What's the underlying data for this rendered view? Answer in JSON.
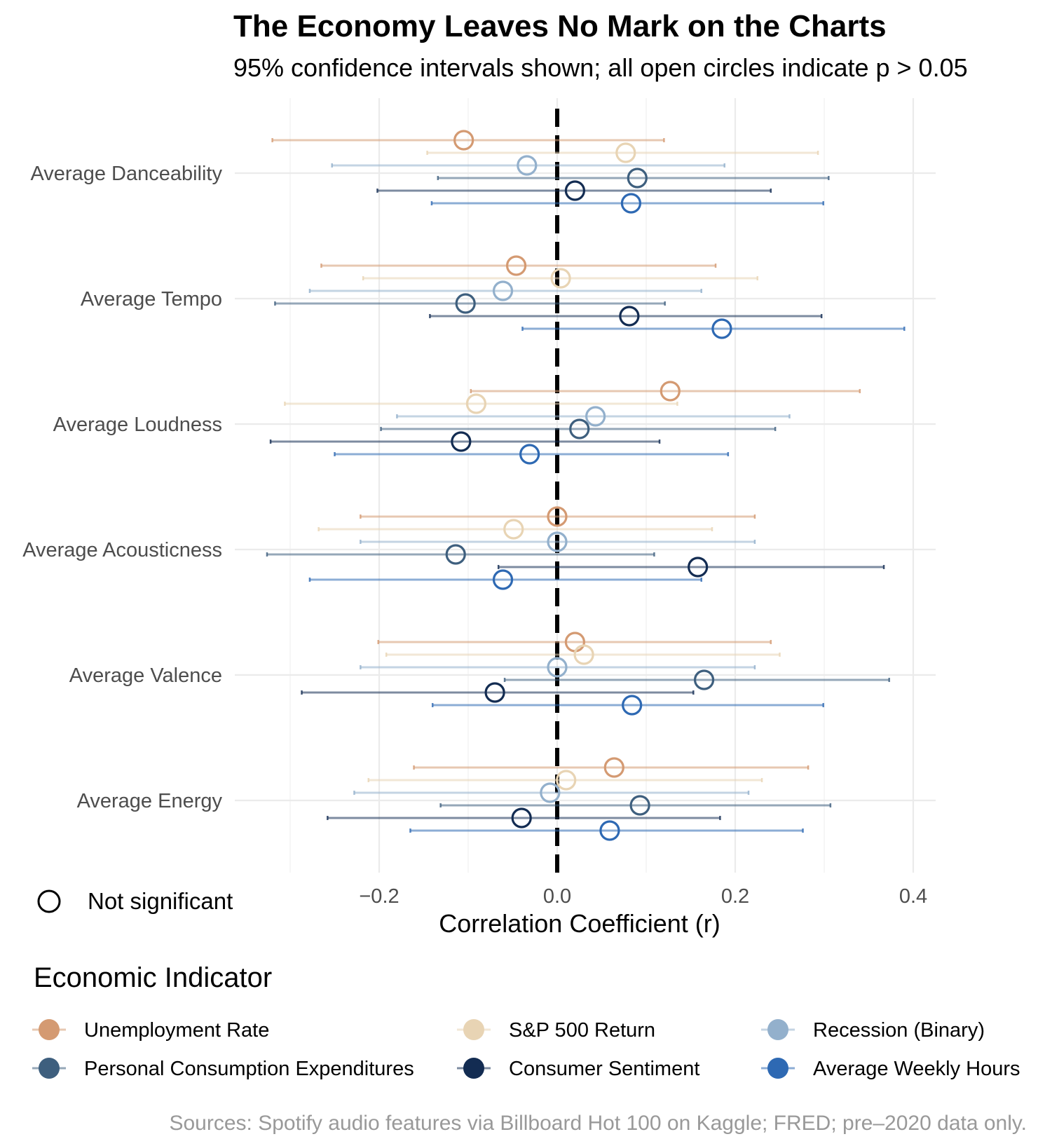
{
  "chart_data": {
    "type": "dot-and-whisker",
    "title": "The Economy Leaves No Mark on the Charts",
    "subtitle": "95% confidence intervals shown; all open circles indicate p > 0.05",
    "xlabel": "Correlation Coefficient (r)",
    "ylabel": "",
    "xlim": [
      -0.365,
      0.425
    ],
    "x_ticks": [
      -0.2,
      0.0,
      0.2,
      0.4
    ],
    "x_tick_labels": [
      "−0.2",
      "0.0",
      "0.2",
      "0.4"
    ],
    "grid": true,
    "reference_line": {
      "x": 0.0,
      "style": "dashed"
    },
    "categories": [
      "Average Danceability",
      "Average Tempo",
      "Average Loudness",
      "Average Acousticness",
      "Average Valence",
      "Average Energy"
    ],
    "series": [
      {
        "name": "Unemployment Rate",
        "color": "#d49a72",
        "values": [
          -0.105,
          -0.046,
          0.127,
          0.0,
          0.02,
          0.064
        ],
        "ci_low": [
          -0.32,
          -0.265,
          -0.097,
          -0.221,
          -0.201,
          -0.161
        ],
        "ci_high": [
          0.12,
          0.178,
          0.34,
          0.222,
          0.24,
          0.282
        ]
      },
      {
        "name": "S&P 500 Return",
        "color": "#e8d4b4",
        "values": [
          0.077,
          0.004,
          -0.091,
          -0.049,
          0.03,
          0.01
        ],
        "ci_low": [
          -0.146,
          -0.218,
          -0.306,
          -0.268,
          -0.192,
          -0.212
        ],
        "ci_high": [
          0.293,
          0.225,
          0.135,
          0.174,
          0.25,
          0.23
        ]
      },
      {
        "name": "Recession (Binary)",
        "color": "#93b0cc",
        "values": [
          -0.034,
          -0.061,
          0.043,
          0.0,
          0.0,
          -0.008
        ],
        "ci_low": [
          -0.253,
          -0.278,
          -0.18,
          -0.221,
          -0.221,
          -0.228
        ],
        "ci_high": [
          0.188,
          0.162,
          0.261,
          0.222,
          0.222,
          0.215
        ]
      },
      {
        "name": "Personal Consumption Expenditures",
        "color": "#3e5f7e",
        "values": [
          0.09,
          -0.103,
          0.025,
          -0.114,
          0.165,
          0.093
        ],
        "ci_low": [
          -0.134,
          -0.317,
          -0.198,
          -0.326,
          -0.059,
          -0.131
        ],
        "ci_high": [
          0.305,
          0.121,
          0.245,
          0.109,
          0.373,
          0.307
        ]
      },
      {
        "name": "Consumer Sentiment",
        "color": "#132c52",
        "values": [
          0.02,
          0.081,
          -0.108,
          0.158,
          -0.07,
          -0.04
        ],
        "ci_low": [
          -0.202,
          -0.143,
          -0.322,
          -0.066,
          -0.287,
          -0.258
        ],
        "ci_high": [
          0.24,
          0.297,
          0.115,
          0.367,
          0.153,
          0.183
        ]
      },
      {
        "name": "Average Weekly Hours",
        "color": "#2e69b3",
        "values": [
          0.083,
          0.185,
          -0.031,
          -0.061,
          0.084,
          0.059
        ],
        "ci_low": [
          -0.141,
          -0.039,
          -0.25,
          -0.278,
          -0.14,
          -0.165
        ],
        "ci_high": [
          0.299,
          0.39,
          0.192,
          0.162,
          0.299,
          0.276
        ]
      }
    ],
    "marker_legend": {
      "label": "Not significant",
      "shape": "open-circle"
    },
    "legend_title": "Economic Indicator",
    "legend_position": "bottom",
    "caption": "Sources: Spotify audio features via Billboard Hot 100 on Kaggle; FRED; pre–2020 data only."
  }
}
